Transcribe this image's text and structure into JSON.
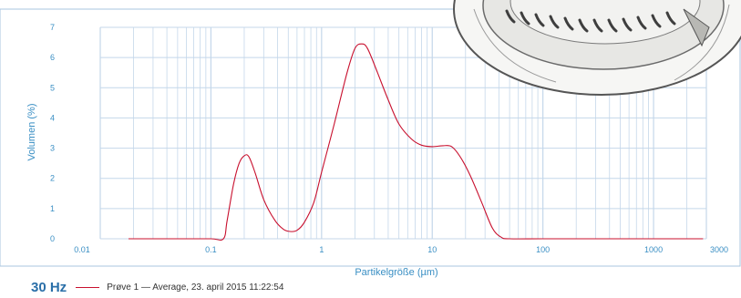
{
  "colors": {
    "axis_text": "#3a8fc4",
    "grid": "#c4d7ea",
    "series": "#c8102e",
    "footer_title": "#2a6fa8",
    "frame": "#aac6df"
  },
  "footer": {
    "frequency": "30 Hz",
    "legend_label": "Prøve 1 — Average, 23. april 2015 11:22:54"
  },
  "decoration": {
    "icon": "vacuum-device-photo"
  },
  "chart_data": {
    "type": "line",
    "title": "",
    "xlabel": "Partikelgröße (µm)",
    "ylabel": "Volumen (%)",
    "xscale": "log",
    "xlim": [
      0.01,
      3000
    ],
    "ylim": [
      0,
      7
    ],
    "grid": true,
    "legend_position": "bottom-left",
    "x_ticks": [
      {
        "value": 0.01,
        "label": "0.01"
      },
      {
        "value": 0.1,
        "label": "0.1"
      },
      {
        "value": 1,
        "label": "1"
      },
      {
        "value": 10,
        "label": "10"
      },
      {
        "value": 100,
        "label": "100"
      },
      {
        "value": 1000,
        "label": "1000"
      },
      {
        "value": 3000,
        "label": "3000"
      }
    ],
    "y_ticks": [
      0,
      1,
      2,
      3,
      4,
      5,
      6,
      7
    ],
    "series": [
      {
        "name": "Prøve 1 — Average, 23. april 2015 11:22:54",
        "color": "#c8102e",
        "x": [
          0.018,
          0.05,
          0.1,
          0.13,
          0.14,
          0.16,
          0.18,
          0.2,
          0.22,
          0.25,
          0.3,
          0.38,
          0.45,
          0.52,
          0.6,
          0.7,
          0.85,
          1.0,
          1.3,
          1.7,
          2.0,
          2.3,
          2.6,
          3.2,
          4.0,
          5.0,
          6.5,
          8.0,
          10,
          12.5,
          15,
          18,
          22,
          28,
          35,
          42,
          50,
          100,
          300,
          1000,
          2800
        ],
        "y": [
          0,
          0,
          0,
          0,
          0.6,
          1.8,
          2.5,
          2.75,
          2.72,
          2.2,
          1.3,
          0.6,
          0.32,
          0.24,
          0.28,
          0.55,
          1.2,
          2.2,
          3.8,
          5.5,
          6.3,
          6.45,
          6.3,
          5.5,
          4.6,
          3.8,
          3.3,
          3.1,
          3.05,
          3.08,
          3.05,
          2.7,
          2.1,
          1.2,
          0.35,
          0.05,
          0,
          0,
          0,
          0,
          0
        ]
      }
    ]
  }
}
